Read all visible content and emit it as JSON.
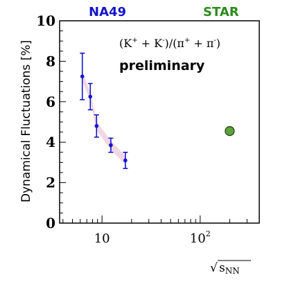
{
  "experiments": {
    "left": "NA49",
    "left_color": "#1414c8",
    "right": "STAR",
    "right_color": "#2d8a1e"
  },
  "annotation": {
    "ratio_base_1": "(K",
    "ratio_sup_1": "+",
    "ratio_mid_1": " + K",
    "ratio_sup_2": "-",
    "ratio_mid_2": ")/(π",
    "ratio_sup_3": "+",
    "ratio_mid_3": " + π",
    "ratio_sup_4": "-",
    "ratio_end": ")",
    "preliminary": "preliminary"
  },
  "chart_data": {
    "type": "scatter",
    "ylabel": "Dynamical Fluctuations [%]",
    "xlabel_radical": "√",
    "xlabel_base": "s",
    "xlabel_sub": "NN",
    "x_scale": "log",
    "xlim": [
      3.7,
      400
    ],
    "ylim": [
      0,
      10
    ],
    "y_ticks": [
      0,
      2,
      4,
      6,
      8,
      10
    ],
    "y_tick_labels": [
      "0",
      "2",
      "4",
      "6",
      "8",
      "10"
    ],
    "x_tick_labels": [
      {
        "value": 10,
        "base": "10",
        "sup": ""
      },
      {
        "value": 100,
        "base": "10",
        "sup": "2"
      }
    ],
    "grid": false,
    "legend": "none",
    "series": [
      {
        "color": "#1414c8",
        "band_color": "#f0d2e1",
        "points": [
          {
            "x": 6.3,
            "y": 7.25,
            "err": 1.15
          },
          {
            "x": 7.6,
            "y": 6.25,
            "err": 0.65
          },
          {
            "x": 8.8,
            "y": 4.8,
            "err": 0.55
          },
          {
            "x": 12.3,
            "y": 3.85,
            "err": 0.35
          },
          {
            "x": 17.3,
            "y": 3.1,
            "err": 0.4
          }
        ]
      },
      {
        "color": "#5fa23a",
        "points": [
          {
            "x": 200,
            "y": 4.55,
            "err": 0
          }
        ]
      }
    ]
  }
}
